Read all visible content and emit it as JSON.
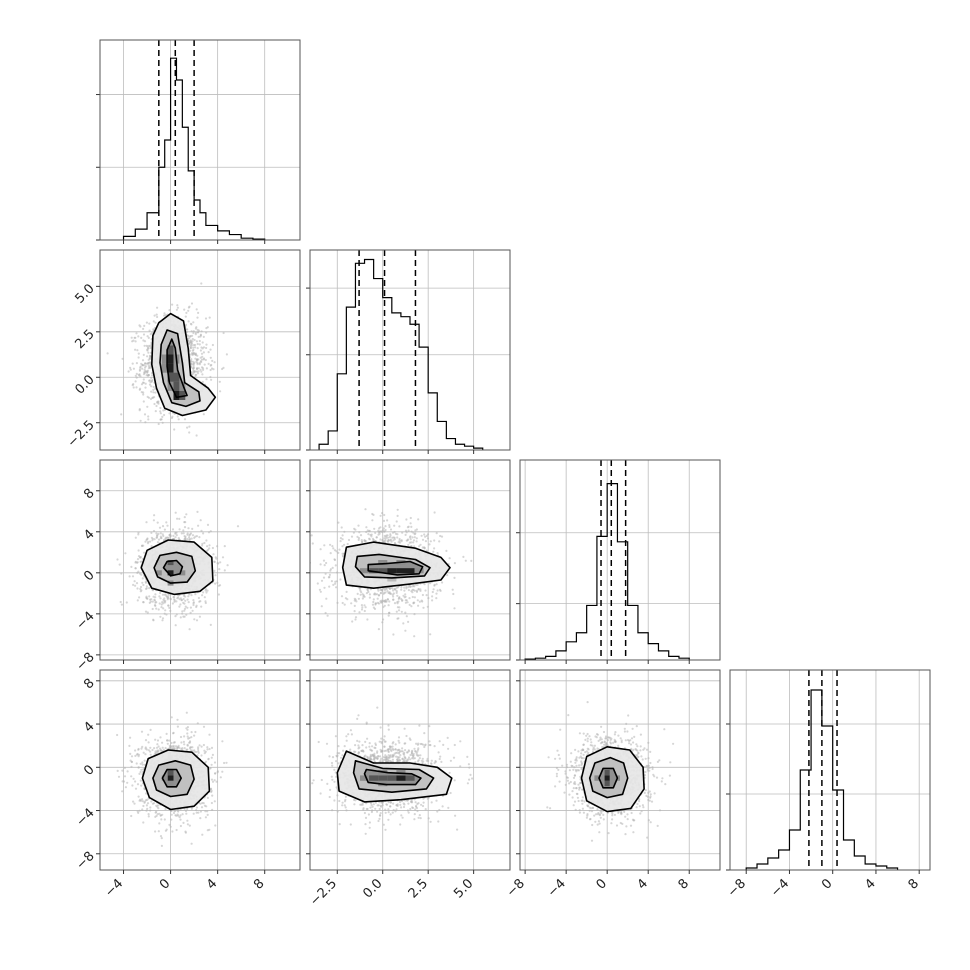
{
  "figure": {
    "type": "corner-plot",
    "background": "#ffffff",
    "grid": true,
    "xlabel": "",
    "ylabel": ""
  },
  "colors": {
    "frame": "#555555",
    "grid": "#bdbdbd",
    "line": "#000000",
    "points": "#b4b4b4",
    "quantile": "#000000",
    "contour": "#000000",
    "density": [
      "#ffffff",
      "#e6e6e6",
      "#bdbdbd",
      "#8c8c8c",
      "#555555",
      "#1e1e1e"
    ]
  },
  "params": [
    {
      "range": [
        -6,
        11
      ],
      "ticks": [
        -4,
        0,
        4,
        8
      ],
      "tick_labels": [
        "−4",
        "0",
        "4",
        "8"
      ]
    },
    {
      "range": [
        -4,
        7
      ],
      "ticks": [
        -2.5,
        0,
        2.5,
        5
      ],
      "tick_labels": [
        "−2.5",
        "0.0",
        "2.5",
        "5.0"
      ]
    },
    {
      "range": [
        -8.5,
        11
      ],
      "ticks": [
        -8,
        -4,
        0,
        4,
        8
      ],
      "tick_labels": [
        "−8",
        "−4",
        "0",
        "4",
        "8"
      ]
    },
    {
      "range": [
        -9.5,
        9
      ],
      "ticks": [
        -8,
        -4,
        0,
        4,
        8
      ],
      "tick_labels": [
        "−8",
        "−4",
        "0",
        "4",
        "8"
      ]
    }
  ],
  "chart_data": [
    {
      "type": "histogram",
      "param": 0,
      "bin_edges": [
        -4,
        -3,
        -2,
        -1,
        -0.5,
        0,
        0.5,
        1,
        1.5,
        2,
        2.5,
        3,
        4,
        5,
        6,
        7,
        8
      ],
      "counts": [
        0.02,
        0.06,
        0.15,
        0.4,
        0.55,
        1.0,
        0.88,
        0.62,
        0.38,
        0.22,
        0.15,
        0.08,
        0.05,
        0.03,
        0.01,
        0.005
      ],
      "quantiles": [
        -1.0,
        0.4,
        2.0
      ],
      "ylim": [
        0,
        1.1
      ],
      "ytick_fracs": [
        0,
        0.4,
        0.8
      ]
    },
    {
      "type": "histogram",
      "param": 1,
      "bin_edges": [
        -3.5,
        -3.0,
        -2.5,
        -2.0,
        -1.5,
        -1.0,
        -0.5,
        0.0,
        0.5,
        1.0,
        1.5,
        2.0,
        2.5,
        3.0,
        3.5,
        4.0,
        4.5,
        5.0,
        5.5
      ],
      "counts": [
        0.03,
        0.1,
        0.4,
        0.75,
        0.98,
        1.0,
        0.9,
        0.8,
        0.72,
        0.7,
        0.66,
        0.54,
        0.3,
        0.15,
        0.06,
        0.03,
        0.02,
        0.01
      ],
      "quantiles": [
        -1.3,
        0.1,
        1.8
      ],
      "ylim": [
        0,
        1.05
      ],
      "ytick_fracs": [
        0,
        0.5,
        0.85
      ]
    },
    {
      "type": "histogram",
      "param": 2,
      "bin_edges": [
        -8,
        -7,
        -6,
        -5,
        -4,
        -3,
        -2,
        -1,
        0,
        1,
        2,
        3,
        4,
        5,
        6,
        7,
        8
      ],
      "counts": [
        0.005,
        0.01,
        0.02,
        0.05,
        0.1,
        0.15,
        0.3,
        0.68,
        0.97,
        0.65,
        0.3,
        0.15,
        0.09,
        0.05,
        0.02,
        0.01
      ],
      "quantiles": [
        -0.6,
        0.4,
        1.8
      ],
      "ylim": [
        0,
        1.1
      ],
      "ytick_fracs": [
        0,
        0.31,
        0.7
      ]
    },
    {
      "type": "histogram",
      "param": 3,
      "bin_edges": [
        -8,
        -7,
        -6,
        -5,
        -4,
        -3,
        -2,
        -1,
        0,
        1,
        2,
        3,
        4,
        5,
        6
      ],
      "counts": [
        0.01,
        0.03,
        0.06,
        0.1,
        0.2,
        0.5,
        0.9,
        0.72,
        0.4,
        0.15,
        0.07,
        0.03,
        0.02,
        0.01
      ],
      "quantiles": [
        -2.2,
        -1.0,
        0.4
      ],
      "ylim": [
        0,
        1.0
      ],
      "ytick_fracs": [
        0,
        0.38,
        0.73
      ]
    },
    {
      "type": "scatter-density",
      "x_param": 0,
      "y_param": 1,
      "center": [
        0.3,
        0.7
      ],
      "spread": [
        1.4,
        1.3
      ],
      "contours": [
        [
          [
            -1.5,
            2.3
          ],
          [
            -1.0,
            3.0
          ],
          [
            0,
            3.5
          ],
          [
            1.1,
            3.1
          ],
          [
            1.5,
            1.6
          ],
          [
            1.7,
            0.1
          ],
          [
            3.2,
            -0.6
          ],
          [
            3.8,
            -1.1
          ],
          [
            3.0,
            -1.8
          ],
          [
            1.0,
            -2.1
          ],
          [
            -0.5,
            -1.7
          ],
          [
            -1.2,
            -0.6
          ],
          [
            -1.6,
            0.7
          ]
        ],
        [
          [
            -0.8,
            1.8
          ],
          [
            -0.3,
            2.6
          ],
          [
            0.6,
            2.4
          ],
          [
            1.0,
            0.8
          ],
          [
            1.2,
            -0.3
          ],
          [
            2.4,
            -0.8
          ],
          [
            2.5,
            -1.3
          ],
          [
            1.3,
            -1.6
          ],
          [
            0.1,
            -1.4
          ],
          [
            -0.6,
            -0.3
          ],
          [
            -0.9,
            0.8
          ]
        ],
        [
          [
            -0.3,
            1.5
          ],
          [
            0.1,
            2.1
          ],
          [
            0.4,
            1.6
          ],
          [
            0.6,
            0.4
          ],
          [
            1.1,
            -0.5
          ],
          [
            1.4,
            -1.0
          ],
          [
            0.5,
            -1.1
          ],
          [
            -0.1,
            -0.3
          ],
          [
            -0.3,
            0.6
          ]
        ]
      ],
      "density_cells": [
        {
          "x": 0,
          "y": 1.5,
          "level": 4
        },
        {
          "x": 0,
          "y": 1,
          "level": 5
        },
        {
          "x": 0,
          "y": 0.5,
          "level": 5
        },
        {
          "x": 0,
          "y": 0,
          "level": 4
        },
        {
          "x": 0.5,
          "y": 0,
          "level": 4
        },
        {
          "x": 0.5,
          "y": -0.5,
          "level": 4
        },
        {
          "x": 0.5,
          "y": -1,
          "level": 5
        },
        {
          "x": 1,
          "y": -1,
          "level": 4
        },
        {
          "x": -0.5,
          "y": 1,
          "level": 3
        },
        {
          "x": -0.5,
          "y": 0.5,
          "level": 3
        },
        {
          "x": 0.5,
          "y": 1,
          "level": 3
        },
        {
          "x": 0,
          "y": -0.5,
          "level": 3
        },
        {
          "x": 1,
          "y": -0.5,
          "level": 3
        }
      ],
      "n_points": 1400
    },
    {
      "type": "scatter-density",
      "x_param": 0,
      "y_param": 2,
      "center": [
        0.3,
        0.4
      ],
      "spread": [
        1.5,
        1.9
      ],
      "contours": [
        [
          [
            -2.5,
            0.5
          ],
          [
            -2.0,
            2.2
          ],
          [
            -0.2,
            3.2
          ],
          [
            2.0,
            3.0
          ],
          [
            3.5,
            1.5
          ],
          [
            3.6,
            -0.8
          ],
          [
            2.5,
            -1.8
          ],
          [
            0.3,
            -2.1
          ],
          [
            -1.6,
            -1.5
          ]
        ],
        [
          [
            -1.4,
            0.5
          ],
          [
            -0.9,
            1.7
          ],
          [
            0.5,
            2.0
          ],
          [
            1.8,
            1.6
          ],
          [
            2.1,
            0.2
          ],
          [
            1.4,
            -0.9
          ],
          [
            0,
            -1.0
          ],
          [
            -1.1,
            -0.4
          ]
        ],
        [
          [
            -0.6,
            0.5
          ],
          [
            -0.3,
            1.1
          ],
          [
            0.5,
            1.2
          ],
          [
            1.0,
            0.6
          ],
          [
            0.8,
            -0.1
          ],
          [
            0,
            -0.3
          ]
        ]
      ],
      "density_cells": [
        {
          "x": 0,
          "y": 0,
          "level": 5
        },
        {
          "x": 0,
          "y": 1,
          "level": 4
        },
        {
          "x": -1,
          "y": 0,
          "level": 3
        },
        {
          "x": 1,
          "y": 0,
          "level": 3
        },
        {
          "x": 0,
          "y": -1,
          "level": 3
        },
        {
          "x": -1,
          "y": 1,
          "level": 2
        },
        {
          "x": 1,
          "y": 1,
          "level": 2
        }
      ],
      "n_points": 1400
    },
    {
      "type": "scatter-density",
      "x_param": 1,
      "y_param": 2,
      "center": [
        0.3,
        0.5
      ],
      "spread": [
        1.4,
        1.9
      ],
      "contours": [
        [
          [
            -2.2,
            0.5
          ],
          [
            -2.0,
            2.5
          ],
          [
            -0.5,
            3.0
          ],
          [
            1.8,
            2.4
          ],
          [
            3.2,
            1.5
          ],
          [
            3.7,
            0.5
          ],
          [
            3.2,
            -0.7
          ],
          [
            1.5,
            -1.1
          ],
          [
            -0.5,
            -1.5
          ],
          [
            -2.0,
            -1.2
          ]
        ],
        [
          [
            -1.5,
            0.6
          ],
          [
            -1.4,
            1.6
          ],
          [
            -0.2,
            1.8
          ],
          [
            1.8,
            1.3
          ],
          [
            2.6,
            0.5
          ],
          [
            2.3,
            -0.3
          ],
          [
            0.5,
            -0.5
          ],
          [
            -1.0,
            -0.4
          ]
        ],
        [
          [
            -0.8,
            0.2
          ],
          [
            -0.8,
            0.8
          ],
          [
            0.2,
            0.9
          ],
          [
            1.5,
            1.1
          ],
          [
            2.2,
            0.6
          ],
          [
            2.0,
            -0.1
          ],
          [
            0.8,
            -0.2
          ]
        ]
      ],
      "density_cells": [
        {
          "x": -0.5,
          "y": 0.2,
          "level": 4
        },
        {
          "x": 0,
          "y": 0.2,
          "level": 4
        },
        {
          "x": 0.5,
          "y": 0.2,
          "level": 5
        },
        {
          "x": 1,
          "y": 0.2,
          "level": 5
        },
        {
          "x": 1.5,
          "y": 0.2,
          "level": 5
        },
        {
          "x": -1,
          "y": 0.2,
          "level": 3
        },
        {
          "x": 2,
          "y": 0.2,
          "level": 3
        },
        {
          "x": 0,
          "y": 1,
          "level": 3
        },
        {
          "x": 1,
          "y": 1,
          "level": 3
        },
        {
          "x": 0.5,
          "y": -0.6,
          "level": 2
        }
      ],
      "n_points": 1400
    },
    {
      "type": "scatter-density",
      "x_param": 0,
      "y_param": 3,
      "center": [
        0.3,
        -0.9
      ],
      "spread": [
        1.5,
        1.8
      ],
      "contours": [
        [
          [
            -2.4,
            -1.0
          ],
          [
            -1.9,
            0.8
          ],
          [
            -0.2,
            1.6
          ],
          [
            1.8,
            1.4
          ],
          [
            3.2,
            0.0
          ],
          [
            3.3,
            -2.2
          ],
          [
            2.0,
            -3.6
          ],
          [
            0,
            -3.9
          ],
          [
            -1.8,
            -2.8
          ]
        ],
        [
          [
            -1.5,
            -1.0
          ],
          [
            -1.0,
            0.2
          ],
          [
            0.4,
            0.6
          ],
          [
            1.7,
            0.2
          ],
          [
            2.0,
            -1.1
          ],
          [
            1.4,
            -2.5
          ],
          [
            0,
            -2.7
          ],
          [
            -1.2,
            -2.1
          ]
        ],
        [
          [
            -0.7,
            -1.0
          ],
          [
            -0.3,
            -0.2
          ],
          [
            0.5,
            -0.2
          ],
          [
            0.9,
            -1.0
          ],
          [
            0.5,
            -1.8
          ],
          [
            -0.3,
            -1.8
          ]
        ]
      ],
      "density_cells": [
        {
          "x": 0,
          "y": -1,
          "level": 5
        },
        {
          "x": 0,
          "y": -0.5,
          "level": 4
        },
        {
          "x": -0.5,
          "y": -1,
          "level": 3
        },
        {
          "x": 0.5,
          "y": -1,
          "level": 3
        },
        {
          "x": 0,
          "y": -1.5,
          "level": 3
        }
      ],
      "n_points": 1400
    },
    {
      "type": "scatter-density",
      "x_param": 1,
      "y_param": 3,
      "center": [
        0.3,
        -0.9
      ],
      "spread": [
        1.4,
        1.7
      ],
      "contours": [
        [
          [
            -2.5,
            -0.5
          ],
          [
            -2.0,
            1.5
          ],
          [
            -0.5,
            0.4
          ],
          [
            1.5,
            0.4
          ],
          [
            3.0,
            0.0
          ],
          [
            3.8,
            -1.0
          ],
          [
            3.5,
            -2.5
          ],
          [
            1.0,
            -3.0
          ],
          [
            -1.0,
            -3.2
          ],
          [
            -2.4,
            -2.2
          ]
        ],
        [
          [
            -1.6,
            -0.5
          ],
          [
            -1.5,
            0.6
          ],
          [
            0,
            -0.1
          ],
          [
            2.0,
            -0.2
          ],
          [
            2.8,
            -1.0
          ],
          [
            2.4,
            -2.0
          ],
          [
            0.5,
            -2.3
          ],
          [
            -1.3,
            -2.0
          ]
        ],
        [
          [
            -1.0,
            -0.6
          ],
          [
            -0.9,
            -0.2
          ],
          [
            0.3,
            -0.5
          ],
          [
            1.6,
            -0.6
          ],
          [
            2.1,
            -1.0
          ],
          [
            1.8,
            -1.6
          ],
          [
            0.2,
            -1.6
          ],
          [
            -0.8,
            -1.4
          ]
        ]
      ],
      "density_cells": [
        {
          "x": -1,
          "y": -1,
          "level": 3
        },
        {
          "x": -0.5,
          "y": -1,
          "level": 4
        },
        {
          "x": 0,
          "y": -1,
          "level": 4
        },
        {
          "x": 0.5,
          "y": -1,
          "level": 4
        },
        {
          "x": 1,
          "y": -1,
          "level": 5
        },
        {
          "x": 1.5,
          "y": -1,
          "level": 4
        },
        {
          "x": 0,
          "y": -0.5,
          "level": 3
        },
        {
          "x": 1,
          "y": -0.5,
          "level": 3
        },
        {
          "x": 0,
          "y": -1.5,
          "level": 3
        }
      ],
      "n_points": 1400
    },
    {
      "type": "scatter-density",
      "x_param": 2,
      "y_param": 3,
      "center": [
        0.3,
        -0.9
      ],
      "spread": [
        1.9,
        1.8
      ],
      "contours": [
        [
          [
            -2.5,
            -1.0
          ],
          [
            -2.0,
            1.0
          ],
          [
            0,
            1.9
          ],
          [
            2.2,
            1.6
          ],
          [
            3.5,
            0.0
          ],
          [
            3.6,
            -2.0
          ],
          [
            2.3,
            -3.8
          ],
          [
            0,
            -4.1
          ],
          [
            -2.0,
            -3.1
          ]
        ],
        [
          [
            -1.7,
            -1.0
          ],
          [
            -1.2,
            0.4
          ],
          [
            0.3,
            0.9
          ],
          [
            1.6,
            0.4
          ],
          [
            2.0,
            -1.0
          ],
          [
            1.5,
            -2.5
          ],
          [
            0,
            -2.8
          ],
          [
            -1.4,
            -2.2
          ]
        ],
        [
          [
            -0.8,
            -1.0
          ],
          [
            -0.4,
            -0.1
          ],
          [
            0.6,
            -0.1
          ],
          [
            1.0,
            -1.0
          ],
          [
            0.6,
            -1.9
          ],
          [
            -0.4,
            -1.9
          ]
        ]
      ],
      "density_cells": [
        {
          "x": 0,
          "y": -1,
          "level": 5
        },
        {
          "x": 0,
          "y": -0.5,
          "level": 4
        },
        {
          "x": 0,
          "y": -1.5,
          "level": 4
        },
        {
          "x": -1,
          "y": -1,
          "level": 3
        },
        {
          "x": 1,
          "y": -1,
          "level": 3
        }
      ],
      "n_points": 1400
    }
  ]
}
